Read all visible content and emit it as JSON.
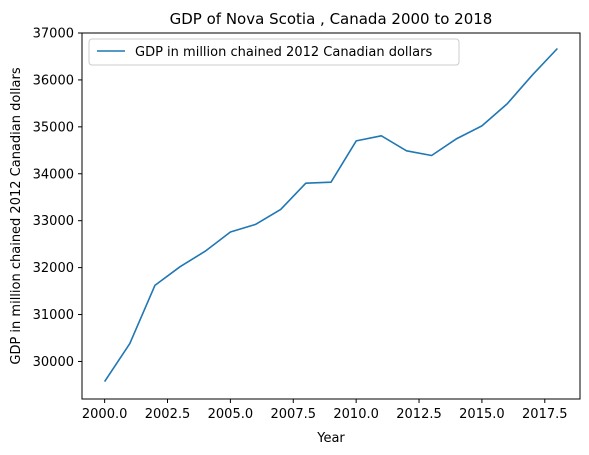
{
  "chart_data": {
    "type": "line",
    "title": "GDP of Nova Scotia , Canada 2000 to 2018",
    "xlabel": "Year",
    "ylabel": "GDP in million chained 2012 Canadian dollars",
    "xlim": [
      1999.1,
      2018.9
    ],
    "ylim": [
      29200,
      37000
    ],
    "xticks": [
      2000.0,
      2002.5,
      2005.0,
      2007.5,
      2010.0,
      2012.5,
      2015.0,
      2017.5
    ],
    "xtick_labels": [
      "2000.0",
      "2002.5",
      "2005.0",
      "2007.5",
      "2010.0",
      "2012.5",
      "2015.0",
      "2017.5"
    ],
    "yticks": [
      30000,
      31000,
      32000,
      33000,
      34000,
      35000,
      36000,
      37000
    ],
    "ytick_labels": [
      "30000",
      "31000",
      "32000",
      "33000",
      "34000",
      "35000",
      "36000",
      "37000"
    ],
    "grid": false,
    "legend_position": "top-left",
    "series": [
      {
        "name": "GDP in million chained 2012 Canadian dollars",
        "color": "#1f77b4",
        "x": [
          2000,
          2001,
          2002,
          2003,
          2004,
          2005,
          2006,
          2007,
          2008,
          2009,
          2010,
          2011,
          2012,
          2013,
          2014,
          2015,
          2016,
          2017,
          2018
        ],
        "y": [
          29570,
          30380,
          31620,
          32020,
          32350,
          32760,
          32920,
          33240,
          33800,
          33820,
          34700,
          34810,
          34490,
          34390,
          34750,
          35020,
          35490,
          36100,
          36670
        ]
      }
    ]
  }
}
